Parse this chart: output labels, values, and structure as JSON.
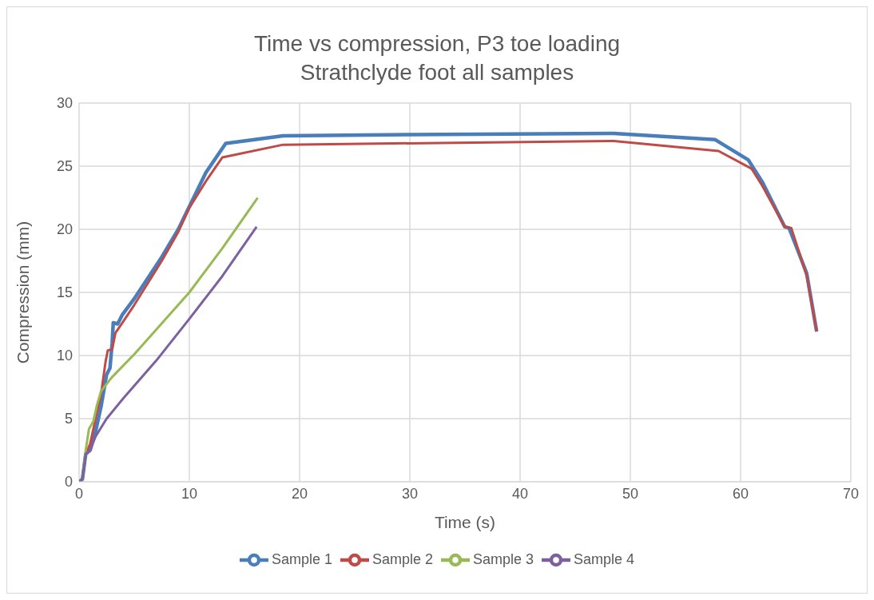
{
  "chart_data": {
    "type": "line",
    "title": "Time vs compression, P3 toe loading\nStrathclyde foot all samples",
    "xlabel": "Time (s)",
    "ylabel": "Compression (mm)",
    "xlim": [
      0,
      70
    ],
    "xticks": [
      0,
      10,
      20,
      30,
      40,
      50,
      60,
      70
    ],
    "ylim": [
      0,
      30
    ],
    "yticks": [
      0,
      5,
      10,
      15,
      20,
      25,
      30
    ],
    "grid": true,
    "legend": "bottom",
    "marker": "none",
    "line_style": "solid",
    "series": [
      {
        "name": "Sample 1",
        "color": "#4a7ebb",
        "x": [
          0,
          0.3,
          0.6,
          1,
          1.5,
          2,
          2.5,
          2.8,
          3,
          3.1,
          3.5,
          3.9,
          5,
          7.5,
          9,
          10,
          11.5,
          13.3,
          18.5,
          30,
          48.5,
          57.7,
          60.7,
          62,
          64,
          64.4,
          66,
          66.9
        ],
        "values": [
          0,
          0.2,
          2.2,
          2.5,
          4,
          6,
          8.5,
          9,
          11,
          12.6,
          12.5,
          13.2,
          14.5,
          17.8,
          20,
          21.8,
          24.5,
          26.8,
          27.4,
          27.5,
          27.6,
          27.1,
          25.5,
          23.7,
          20.2,
          20.1,
          16.5,
          11.9
        ]
      },
      {
        "name": "Sample 2",
        "color": "#be4b48",
        "x": [
          0,
          0.3,
          0.6,
          1,
          1.5,
          2,
          2.4,
          2.6,
          3,
          3.3,
          3.7,
          5,
          7.5,
          9,
          10,
          11.5,
          13,
          18.5,
          48.5,
          58,
          61,
          62,
          64,
          64.6,
          66,
          66.9
        ],
        "values": [
          0,
          0.2,
          2.2,
          3,
          5,
          7,
          9.5,
          10.4,
          10.5,
          11.8,
          12.3,
          14,
          17.5,
          19.8,
          21.7,
          23.8,
          25.7,
          26.7,
          27,
          26.2,
          24.8,
          23.4,
          20.2,
          20.1,
          16.3,
          11.9
        ]
      },
      {
        "name": "Sample 3",
        "color": "#98b954",
        "x": [
          0,
          0.3,
          0.6,
          0.9,
          1.3,
          1.6,
          2,
          3,
          5,
          10,
          13,
          16.2
        ],
        "values": [
          0,
          0.2,
          2.5,
          4.2,
          4.8,
          6,
          7.2,
          8.3,
          10.1,
          15,
          18.5,
          22.5
        ]
      },
      {
        "name": "Sample 4",
        "color": "#7d60a0",
        "x": [
          0,
          0.3,
          0.6,
          1,
          1.5,
          2.5,
          4,
          7,
          10,
          13,
          16.1
        ],
        "values": [
          0,
          0.2,
          2.2,
          2.5,
          3.6,
          5,
          6.6,
          9.6,
          12.9,
          16.3,
          20.2
        ]
      }
    ]
  }
}
